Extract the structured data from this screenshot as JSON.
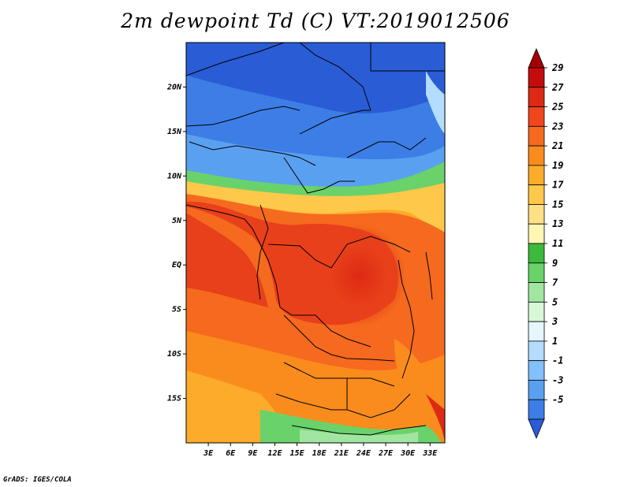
{
  "title": "2m dewpoint Td (C) VT:2019012506",
  "footer": "GrADS: IGES/COLA",
  "map": {
    "x_ticks": [
      "3E",
      "6E",
      "9E",
      "12E",
      "15E",
      "18E",
      "21E",
      "24E",
      "27E",
      "30E",
      "33E"
    ],
    "y_ticks": [
      "20N",
      "15N",
      "10N",
      "5N",
      "EQ",
      "5S",
      "10S",
      "15S"
    ],
    "x_tick_values": [
      3,
      6,
      9,
      12,
      15,
      18,
      21,
      24,
      27,
      30,
      33
    ],
    "y_tick_values": [
      20,
      15,
      10,
      5,
      0,
      -5,
      -10,
      -15
    ],
    "lon_range": [
      0,
      35
    ],
    "lat_range": [
      -20,
      25
    ]
  },
  "colorbar": {
    "labels": [
      "29",
      "27",
      "25",
      "23",
      "21",
      "19",
      "17",
      "15",
      "13",
      "11",
      "9",
      "7",
      "5",
      "3",
      "1",
      "-1",
      "-3",
      "-5"
    ],
    "colors": [
      "#a50000",
      "#c40c0c",
      "#dd2a14",
      "#f0461e",
      "#f56a1e",
      "#fa8c1e",
      "#fcac2a",
      "#fec84a",
      "#ffe086",
      "#fff6b4",
      "#3cba3c",
      "#6ad26a",
      "#a0e6a0",
      "#d8f8d8",
      "#e6f5ff",
      "#b4dcff",
      "#82c0ff",
      "#5aa0f0",
      "#3c7ee6",
      "#2a5cd6"
    ]
  }
}
